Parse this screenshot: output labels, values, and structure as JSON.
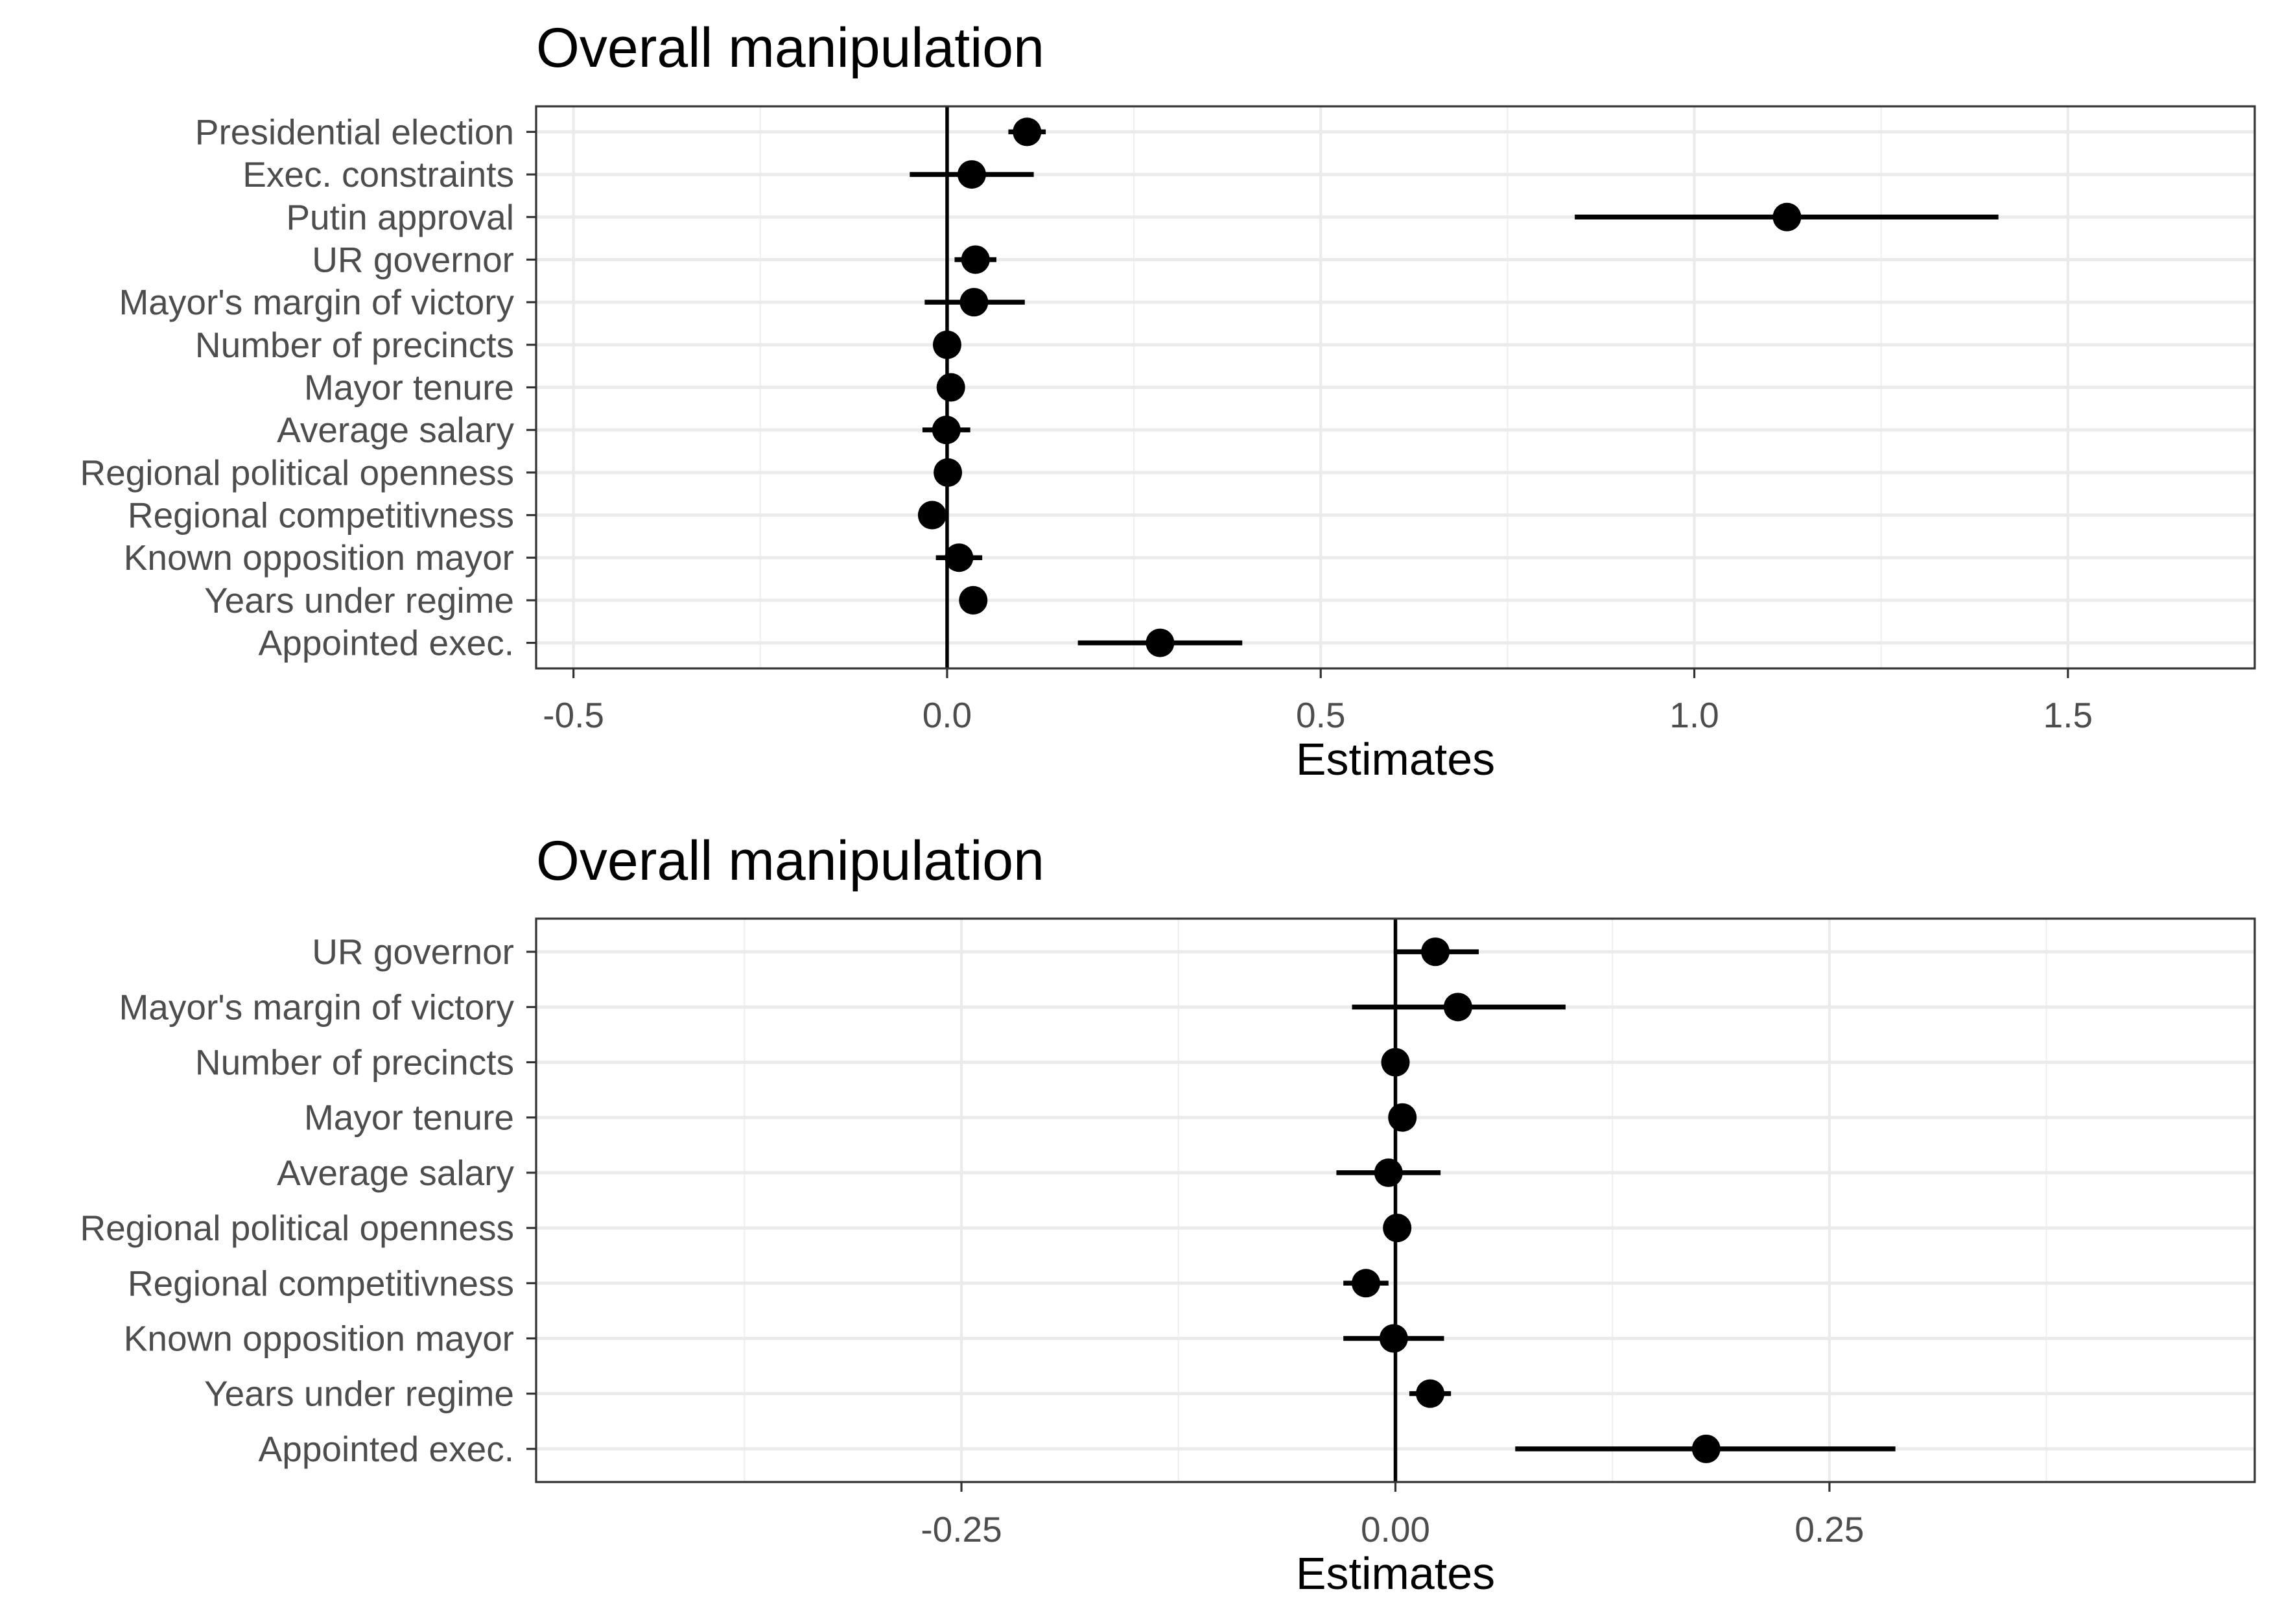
{
  "chart_data": [
    {
      "type": "coefficient-plot",
      "title": "Overall manipulation",
      "xlabel": "Estimates",
      "ylabel": "",
      "xlim": [
        -0.55,
        1.75
      ],
      "x_ticks": [
        -0.5,
        0.0,
        0.5,
        1.0,
        1.5
      ],
      "x_tick_labels": [
        "-0.5",
        "0.0",
        "0.5",
        "1.0",
        "1.5"
      ],
      "reference_line": 0,
      "grid": true,
      "categories": [
        "Presidential election",
        "Exec. constraints",
        "Putin approval",
        "UR governor",
        "Mayor's margin of victory",
        "Number of precincts",
        "Mayor tenure",
        "Average salary",
        "Regional political openness",
        "Regional competitivness",
        "Known opposition mayor",
        "Years under regime",
        "Appointed exec."
      ],
      "estimates": [
        0.107,
        0.033,
        1.124,
        0.038,
        0.036,
        0.0,
        0.005,
        -0.001,
        0.001,
        -0.02,
        0.016,
        0.035,
        0.285
      ],
      "ci_low": [
        0.082,
        -0.05,
        0.84,
        0.01,
        -0.03,
        -0.002,
        0.0,
        -0.033,
        -0.001,
        -0.022,
        -0.015,
        0.03,
        0.175
      ],
      "ci_high": [
        0.132,
        0.116,
        1.407,
        0.066,
        0.104,
        0.002,
        0.01,
        0.031,
        0.003,
        -0.018,
        0.047,
        0.04,
        0.395
      ]
    },
    {
      "type": "coefficient-plot",
      "title": "Overall manipulation",
      "xlabel": "Estimates",
      "ylabel": "",
      "xlim": [
        -0.495,
        0.495
      ],
      "x_ticks": [
        -0.25,
        0.0,
        0.25
      ],
      "x_tick_labels": [
        "-0.25",
        "0.00",
        "0.25"
      ],
      "reference_line": 0,
      "grid": true,
      "categories": [
        "UR governor",
        "Mayor's margin of victory",
        "Number of precincts",
        "Mayor tenure",
        "Average salary",
        "Regional political openness",
        "Regional competitivness",
        "Known opposition mayor",
        "Years under regime",
        "Appointed exec."
      ],
      "estimates": [
        0.023,
        0.036,
        0.0,
        0.004,
        -0.004,
        0.001,
        -0.017,
        -0.001,
        0.02,
        0.179
      ],
      "ci_low": [
        -0.001,
        -0.025,
        -0.002,
        0.001,
        -0.034,
        -0.001,
        -0.03,
        -0.03,
        0.008,
        0.069
      ],
      "ci_high": [
        0.048,
        0.098,
        0.002,
        0.007,
        0.026,
        0.003,
        -0.004,
        0.028,
        0.032,
        0.288
      ]
    }
  ]
}
